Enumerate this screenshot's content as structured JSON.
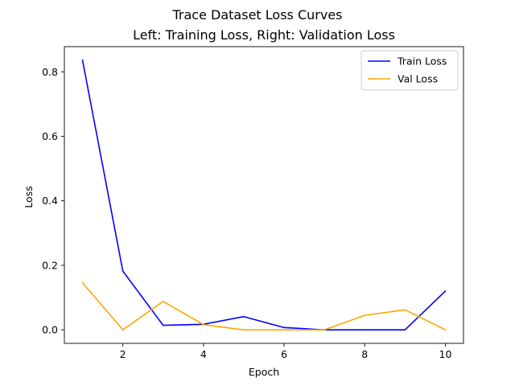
{
  "chart_data": {
    "type": "line",
    "suptitle": "Trace Dataset Loss Curves",
    "title": "Left: Training Loss, Right: Validation Loss",
    "xlabel": "Epoch",
    "ylabel": "Loss",
    "xlim": [
      0.55,
      10.45
    ],
    "ylim": [
      -0.042,
      0.878
    ],
    "x_ticks": [
      2,
      4,
      6,
      8,
      10
    ],
    "y_ticks": [
      0.0,
      0.2,
      0.4,
      0.6,
      0.8
    ],
    "x_tick_labels": [
      "2",
      "4",
      "6",
      "8",
      "10"
    ],
    "y_tick_labels": [
      "0.0",
      "0.2",
      "0.4",
      "0.6",
      "0.8"
    ],
    "grid": false,
    "legend_position": "top-right",
    "x": [
      1,
      2,
      3,
      4,
      5,
      6,
      7,
      8,
      9,
      10
    ],
    "series": [
      {
        "name": "Train Loss",
        "color": "#0000ff",
        "values": [
          0.836,
          0.182,
          0.014,
          0.017,
          0.041,
          0.007,
          0.0,
          0.0,
          0.0,
          0.12
        ]
      },
      {
        "name": "Val Loss",
        "color": "#ffa500",
        "values": [
          0.146,
          0.0,
          0.088,
          0.016,
          0.0,
          0.0,
          0.0,
          0.045,
          0.062,
          0.0
        ]
      }
    ]
  }
}
